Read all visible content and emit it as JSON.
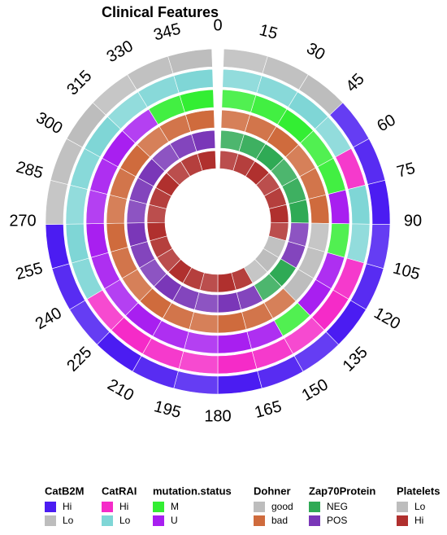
{
  "chart_data": {
    "type": "circular-heatmap",
    "title": "Clinical Features",
    "xlim": [
      0,
      360
    ],
    "xticks": [
      0,
      15,
      30,
      45,
      60,
      75,
      90,
      105,
      120,
      135,
      150,
      165,
      180,
      195,
      210,
      225,
      240,
      255,
      270,
      285,
      300,
      315,
      330,
      345
    ],
    "tracks": [
      {
        "name": "CatB2M",
        "levels": [
          {
            "label": "Hi",
            "color": "#4b1cf2"
          },
          {
            "label": "Lo",
            "color": "#bdbdbd"
          }
        ],
        "values": [
          1,
          1,
          1,
          0,
          0,
          0,
          0,
          0,
          0,
          0,
          0,
          0,
          0,
          0,
          0,
          0,
          0,
          0,
          1,
          1,
          1,
          1,
          1,
          1
        ]
      },
      {
        "name": "CatRAI",
        "levels": [
          {
            "label": "Hi",
            "color": "#f52bc8"
          },
          {
            "label": "Lo",
            "color": "#7fd6d6"
          }
        ],
        "values": [
          1,
          1,
          1,
          1,
          0,
          1,
          1,
          0,
          0,
          0,
          0,
          0,
          0,
          0,
          0,
          0,
          1,
          1,
          1,
          1,
          1,
          1,
          1,
          1
        ]
      },
      {
        "name": "mutation.status",
        "levels": [
          {
            "label": "M",
            "color": "#33ee33"
          },
          {
            "label": "U",
            "color": "#a81ff0"
          }
        ],
        "values": [
          0,
          0,
          0,
          0,
          0,
          1,
          0,
          1,
          1,
          0,
          1,
          1,
          1,
          1,
          1,
          1,
          1,
          1,
          1,
          1,
          1,
          1,
          0,
          0
        ]
      },
      {
        "name": "Dohner",
        "levels": [
          {
            "label": "good",
            "color": "#bdbdbd"
          },
          {
            "label": "bad",
            "color": "#cf6b3d"
          }
        ],
        "values": [
          1,
          1,
          1,
          1,
          1,
          1,
          0,
          0,
          0,
          1,
          1,
          1,
          1,
          1,
          1,
          1,
          1,
          1,
          1,
          1,
          1,
          1,
          1,
          1
        ]
      },
      {
        "name": "Zap70Protein",
        "levels": [
          {
            "label": "NEG",
            "color": "#2faa55"
          },
          {
            "label": "POS",
            "color": "#7a37b8"
          }
        ],
        "values": [
          0,
          0,
          0,
          0,
          0,
          0,
          1,
          1,
          0,
          0,
          1,
          1,
          1,
          1,
          1,
          1,
          1,
          1,
          1,
          1,
          1,
          1,
          1,
          1
        ]
      },
      {
        "name": "Platelets",
        "levels": [
          {
            "label": "Lo",
            "color": "#bdbdbd"
          },
          {
            "label": "Hi",
            "color": "#b0302e"
          }
        ],
        "values": [
          1,
          1,
          1,
          1,
          1,
          1,
          1,
          0,
          0,
          0,
          1,
          1,
          1,
          1,
          1,
          1,
          1,
          1,
          1,
          1,
          1,
          1,
          1,
          1
        ]
      }
    ]
  }
}
